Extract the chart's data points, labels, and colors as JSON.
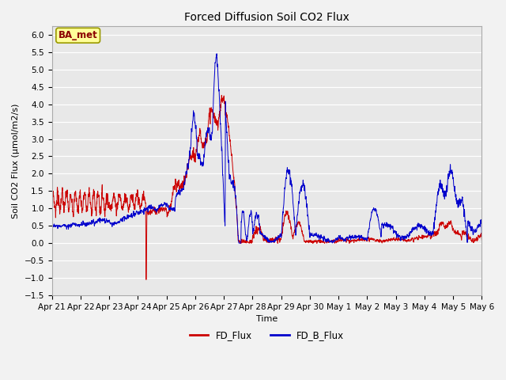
{
  "title": "Forced Diffusion Soil CO2 Flux",
  "xlabel": "Time",
  "ylabel": "Soil CO2 Flux (umol/m2/s)",
  "ylim": [
    -1.5,
    6.25
  ],
  "yticks": [
    -1.5,
    -1.0,
    -0.5,
    0.0,
    0.5,
    1.0,
    1.5,
    2.0,
    2.5,
    3.0,
    3.5,
    4.0,
    4.5,
    5.0,
    5.5,
    6.0
  ],
  "fd_flux_color": "#cc0000",
  "fd_b_flux_color": "#0000cc",
  "fig_facecolor": "#f2f2f2",
  "plot_bg_color": "#e8e8e8",
  "annotation_text": "BA_met",
  "annotation_facecolor": "#ffff99",
  "annotation_edgecolor": "#999900",
  "legend_labels": [
    "FD_Flux",
    "FD_B_Flux"
  ],
  "line_width": 0.7,
  "title_fontsize": 10,
  "label_fontsize": 8,
  "tick_fontsize": 7.5,
  "annot_fontsize": 8.5
}
